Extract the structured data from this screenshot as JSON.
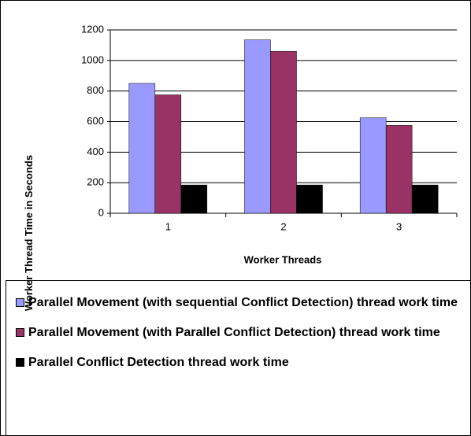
{
  "chart_data": {
    "type": "bar",
    "y_label": "Worker Thread Time in Seconds",
    "x_label": "Worker Threads",
    "categories": [
      "1",
      "2",
      "3"
    ],
    "series": [
      {
        "name": "Parallel Movement (with sequential Conflict Detection) thread work time",
        "color": "#9999ff",
        "values": [
          850,
          1135,
          625
        ]
      },
      {
        "name": "Parallel Movement (with Parallel Conflict Detection) thread work time",
        "color": "#993366",
        "values": [
          775,
          1060,
          575
        ]
      },
      {
        "name": "Parallel Conflict Detection thread work time",
        "color": "#000000",
        "values": [
          185,
          185,
          185
        ]
      }
    ],
    "ylim": [
      0,
      1200
    ],
    "yticks": [
      0,
      200,
      400,
      600,
      800,
      1000,
      1200
    ],
    "grid": true
  }
}
